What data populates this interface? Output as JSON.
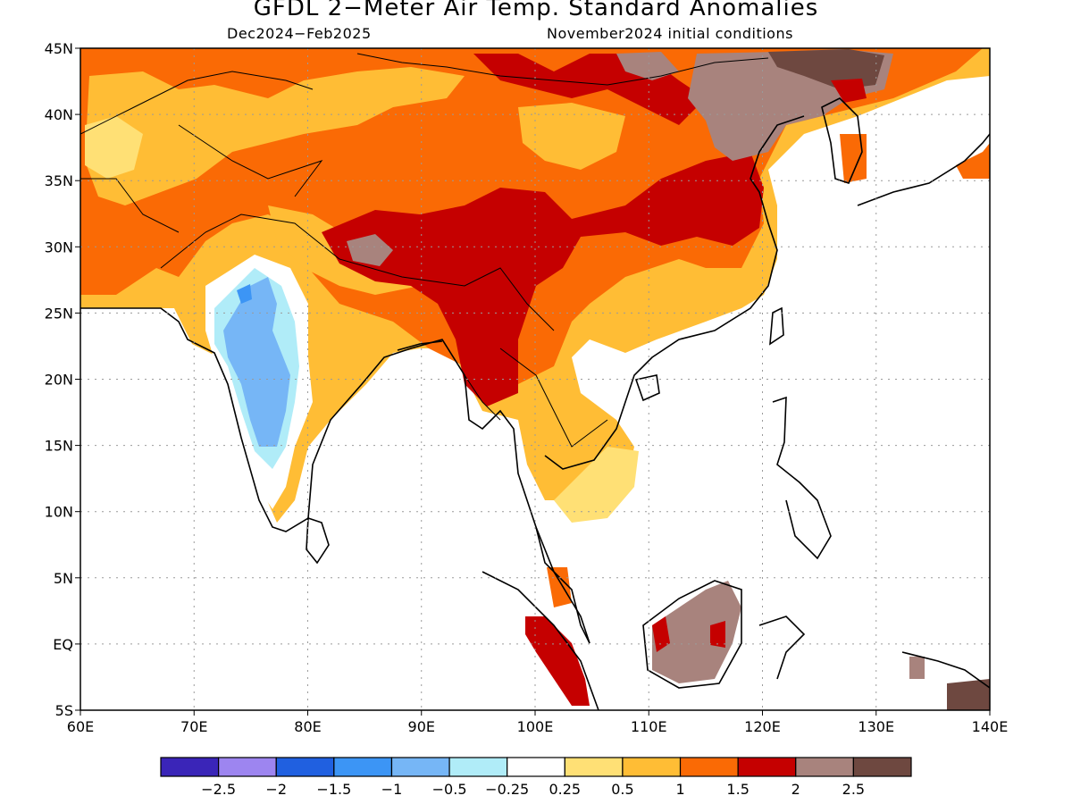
{
  "title": "GFDL 2−Meter Air Temp. Standard Anomalies",
  "subtitle_left": "Dec2024−Feb2025",
  "subtitle_right": "November2024 initial conditions",
  "lat_labels": [
    "45N",
    "40N",
    "35N",
    "30N",
    "25N",
    "20N",
    "15N",
    "10N",
    "5N",
    "EQ",
    "5S"
  ],
  "lon_labels": [
    "60E",
    "70E",
    "80E",
    "90E",
    "100E",
    "110E",
    "120E",
    "130E",
    "140E"
  ],
  "legend": {
    "colors": [
      "#3a25b8",
      "#9d85f0",
      "#2060e0",
      "#3c95f5",
      "#76b6f6",
      "#b0ecf8",
      "#ffffff",
      "#ffe075",
      "#ffbd35",
      "#fa6a05",
      "#c50000",
      "#a8837d",
      "#6e4840"
    ],
    "labels": [
      "−2.5",
      "−2",
      "−1.5",
      "−1",
      "−0.5",
      "−0.25",
      "0.25",
      "0.5",
      "1",
      "1.5",
      "2",
      "2.5"
    ]
  }
}
